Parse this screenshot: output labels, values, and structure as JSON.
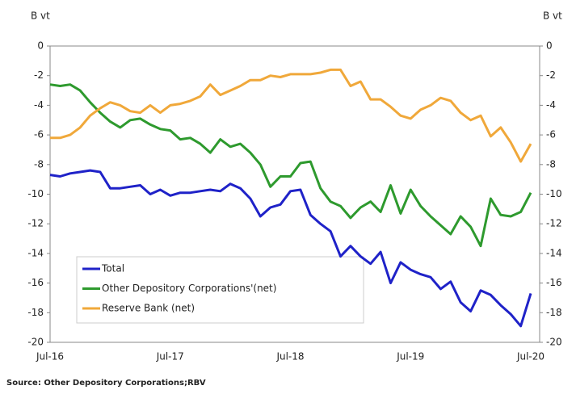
{
  "chart_data": {
    "type": "line",
    "ylabel": "B vt",
    "y2label": "B vt",
    "source": "Source: Other Depository Corporations;RBV",
    "categories": [
      "Jul-16",
      null,
      null,
      null,
      null,
      null,
      null,
      null,
      null,
      null,
      null,
      null,
      "Jul-17",
      null,
      null,
      null,
      null,
      null,
      null,
      null,
      null,
      null,
      null,
      null,
      "Jul-18",
      null,
      null,
      null,
      null,
      null,
      null,
      null,
      null,
      null,
      null,
      null,
      "Jul-19",
      null,
      null,
      null,
      null,
      null,
      null,
      null,
      null,
      null,
      null,
      null,
      "Jul-20"
    ],
    "series": [
      {
        "name": "Total",
        "color": "#1f22c8",
        "values": [
          -8.7,
          -8.8,
          -8.6,
          -8.5,
          -8.4,
          -8.5,
          -9.6,
          -9.6,
          -9.5,
          -9.4,
          -10.0,
          -9.7,
          -10.1,
          -9.9,
          -9.9,
          -9.8,
          -9.7,
          -9.8,
          -9.3,
          -9.6,
          -10.3,
          -11.5,
          -10.9,
          -10.7,
          -9.8,
          -9.7,
          -11.4,
          -12.0,
          -12.5,
          -14.2,
          -13.5,
          -14.2,
          -14.7,
          -13.9,
          -16.0,
          -14.6,
          -15.1,
          -15.4,
          -15.6,
          -16.4,
          -15.9,
          -17.3,
          -17.9,
          -16.5,
          -16.8,
          -17.5,
          -18.1,
          -18.9,
          -16.7
        ]
      },
      {
        "name": "Other Depository Corporations'(net)",
        "color": "#2e9a2e",
        "values": [
          -2.6,
          -2.7,
          -2.6,
          -3.0,
          -3.8,
          -4.5,
          -5.1,
          -5.5,
          -5.0,
          -4.9,
          -5.3,
          -5.6,
          -5.7,
          -6.3,
          -6.2,
          -6.6,
          -7.2,
          -6.3,
          -6.8,
          -6.6,
          -7.2,
          -8.0,
          -9.5,
          -8.8,
          -8.8,
          -7.9,
          -7.8,
          -9.6,
          -10.5,
          -10.8,
          -11.6,
          -10.9,
          -10.5,
          -11.2,
          -9.4,
          -11.3,
          -9.7,
          -10.8,
          -11.5,
          -12.1,
          -12.7,
          -11.5,
          -12.2,
          -13.5,
          -10.3,
          -11.4,
          -11.5,
          -11.2,
          -9.9
        ]
      },
      {
        "name": "Reserve Bank (net)",
        "color": "#f0a83a",
        "values": [
          -6.2,
          -6.2,
          -6.0,
          -5.5,
          -4.7,
          -4.2,
          -3.8,
          -4.0,
          -4.4,
          -4.5,
          -4.0,
          -4.5,
          -4.0,
          -3.9,
          -3.7,
          -3.4,
          -2.6,
          -3.3,
          -3.0,
          -2.7,
          -2.3,
          -2.3,
          -2.0,
          -2.1,
          -1.9,
          -1.9,
          -1.9,
          -1.8,
          -1.6,
          -1.6,
          -2.7,
          -2.4,
          -3.6,
          -3.6,
          -4.1,
          -4.7,
          -4.9,
          -4.3,
          -4.0,
          -3.5,
          -3.7,
          -4.5,
          -5.0,
          -4.7,
          -6.1,
          -5.5,
          -6.5,
          -7.8,
          -6.6
        ]
      }
    ],
    "ylim": [
      -20,
      0
    ],
    "yticks": [
      0,
      -2,
      -4,
      -6,
      -8,
      -10,
      -12,
      -14,
      -16,
      -18,
      -20
    ],
    "y2lim": [
      -20,
      0
    ],
    "y2ticks": [
      0,
      -2,
      -4,
      -6,
      -8,
      -10,
      -12,
      -14,
      -16,
      -18,
      -20
    ],
    "legend": "lower left",
    "grid": false
  }
}
